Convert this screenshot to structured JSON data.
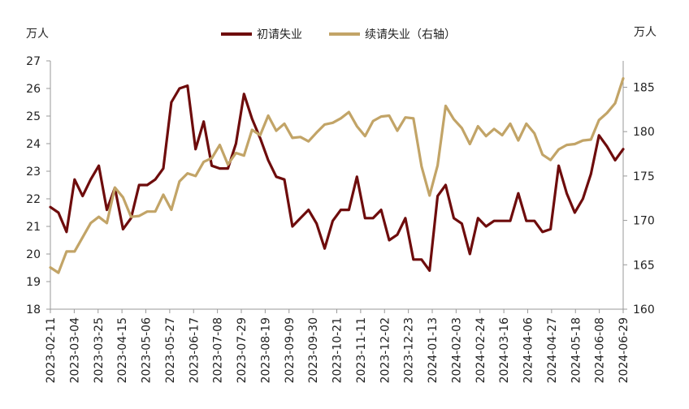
{
  "chart_data": {
    "type": "line",
    "left_unit": "万人",
    "right_unit": "万人",
    "legend_position": "top-center",
    "grid": false,
    "y_left_range": [
      18,
      27
    ],
    "y_right_range": [
      160,
      188
    ],
    "y_left_ticks": [
      "18",
      "19",
      "20",
      "21",
      "22",
      "23",
      "24",
      "25",
      "26",
      "27"
    ],
    "y_right_ticks": [
      "160",
      "165",
      "170",
      "175",
      "180",
      "185"
    ],
    "x_tick_labels": [
      "2023-02-11",
      "2023-03-04",
      "2023-03-25",
      "2023-04-15",
      "2023-05-06",
      "2023-05-27",
      "2023-06-17",
      "2023-07-08",
      "2023-07-29",
      "2023-08-19",
      "2023-09-09",
      "2023-09-30",
      "2023-10-21",
      "2023-11-11",
      "2023-12-02",
      "2023-12-23",
      "2024-01-13",
      "2024-02-03",
      "2024-02-24",
      "2024-03-16",
      "2024-04-06",
      "2024-04-27",
      "2024-05-18",
      "2024-06-08",
      "2024-06-29"
    ],
    "series": [
      {
        "name": "初请失业",
        "axis": "left",
        "color": "#6e0c0c",
        "values": [
          21.7,
          21.5,
          20.8,
          22.7,
          22.1,
          22.7,
          23.2,
          21.6,
          22.4,
          20.9,
          21.3,
          22.5,
          22.5,
          22.7,
          23.1,
          25.5,
          26.0,
          26.1,
          23.8,
          24.8,
          23.2,
          23.1,
          23.1,
          24.0,
          25.8,
          24.9,
          24.2,
          23.4,
          22.8,
          22.7,
          21.0,
          21.3,
          21.6,
          21.1,
          20.2,
          21.2,
          21.6,
          21.6,
          22.8,
          21.3,
          21.3,
          21.6,
          20.5,
          20.7,
          21.3,
          19.8,
          19.8,
          19.4,
          22.1,
          22.5,
          21.3,
          21.1,
          20.0,
          21.3,
          21.0,
          21.2,
          21.2,
          21.2,
          22.2,
          21.2,
          21.2,
          20.8,
          20.9,
          23.2,
          22.2,
          21.5,
          22.0,
          22.9,
          24.3,
          23.9,
          23.4,
          23.8
        ],
        "last_value": 23.8
      },
      {
        "name": "续请失业（右轴）",
        "axis": "right",
        "color": "#c2a467",
        "values": [
          164.7,
          164.1,
          166.5,
          166.5,
          168.1,
          169.7,
          170.4,
          169.7,
          173.7,
          172.6,
          170.4,
          170.5,
          171.0,
          171.0,
          172.9,
          171.2,
          174.4,
          175.3,
          175.0,
          176.6,
          177.0,
          178.5,
          176.3,
          177.6,
          177.3,
          180.2,
          179.6,
          181.8,
          180.1,
          180.9,
          179.3,
          179.4,
          178.9,
          179.9,
          180.8,
          181.0,
          181.5,
          182.2,
          180.6,
          179.5,
          181.2,
          181.7,
          181.8,
          180.1,
          181.6,
          181.5,
          176.1,
          172.8,
          176.2,
          182.9,
          181.4,
          180.4,
          178.6,
          180.6,
          179.5,
          180.3,
          179.6,
          180.9,
          179.0,
          180.9,
          179.8,
          177.4,
          176.8,
          178.0,
          178.5,
          178.6,
          179.0,
          179.1,
          181.3,
          182.1,
          183.2,
          186.0
        ],
        "last_value": 186.0
      }
    ]
  }
}
